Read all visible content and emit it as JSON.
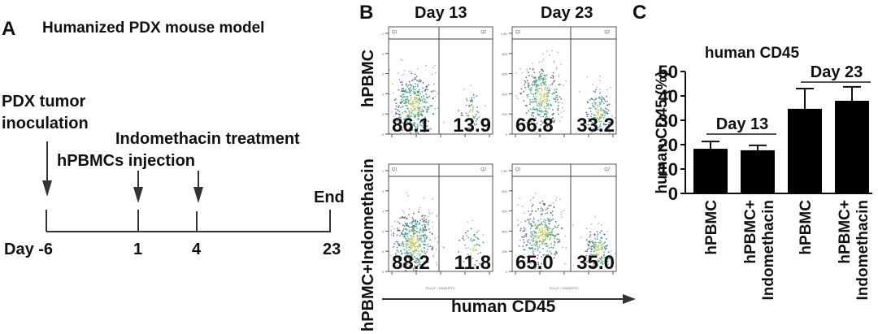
{
  "panel_a": {
    "letter": "A",
    "title": "Humanized PDX mouse model",
    "events": [
      {
        "label_lines": [
          "PDX tumor",
          "inoculation"
        ],
        "day": "-6"
      },
      {
        "label_lines": [
          "hPBMCs injection"
        ],
        "day": "1"
      },
      {
        "label_lines": [
          "Indomethacin treatment"
        ],
        "day": "4"
      },
      {
        "label_lines": [
          "End"
        ],
        "day": "23"
      }
    ],
    "day_prefix": "Day"
  },
  "panel_b": {
    "letter": "B",
    "columns": [
      "Day 13",
      "Day 23"
    ],
    "rows": [
      "hPBMC",
      "hPBMC+Indomethacin"
    ],
    "plots": [
      {
        "row": 0,
        "col": 0,
        "q1": "86.1",
        "q2": "13.9"
      },
      {
        "row": 0,
        "col": 1,
        "q1": "66.8",
        "q2": "33.2"
      },
      {
        "row": 1,
        "col": 0,
        "q1": "88.2",
        "q2": "11.8"
      },
      {
        "row": 1,
        "col": 1,
        "q1": "65.0",
        "q2": "35.0"
      }
    ],
    "quadrant_labels": [
      "Q1",
      "Q2"
    ],
    "x_axis_small_label": "FL1-H :: CD45 FITC",
    "y_ticks": [
      "0",
      "200",
      "400",
      "600",
      "800",
      "1.0K"
    ],
    "x_axis_arrow_label": "human CD45"
  },
  "chart_data": {
    "type": "bar",
    "title": "human CD45",
    "ylabel": "human CD45 (%)",
    "xlabel": "",
    "ylim": [
      0,
      50
    ],
    "yticks": [
      0,
      10,
      20,
      30,
      40,
      50
    ],
    "categories": [
      [
        "hPBMC"
      ],
      [
        "hPBMC+",
        "Indomethacin"
      ],
      [
        "hPBMC"
      ],
      [
        "hPBMC+",
        "Indomethacin"
      ]
    ],
    "values": [
      18.3,
      17.7,
      34.7,
      38.0
    ],
    "error_upper": [
      21.3,
      19.7,
      43.0,
      43.7
    ],
    "bar_color": "#000000",
    "groups": [
      {
        "label": "Day 13",
        "indices": [
          0,
          1
        ]
      },
      {
        "label": "Day 23",
        "indices": [
          2,
          3
        ]
      }
    ],
    "letter": "C",
    "grid": false
  }
}
